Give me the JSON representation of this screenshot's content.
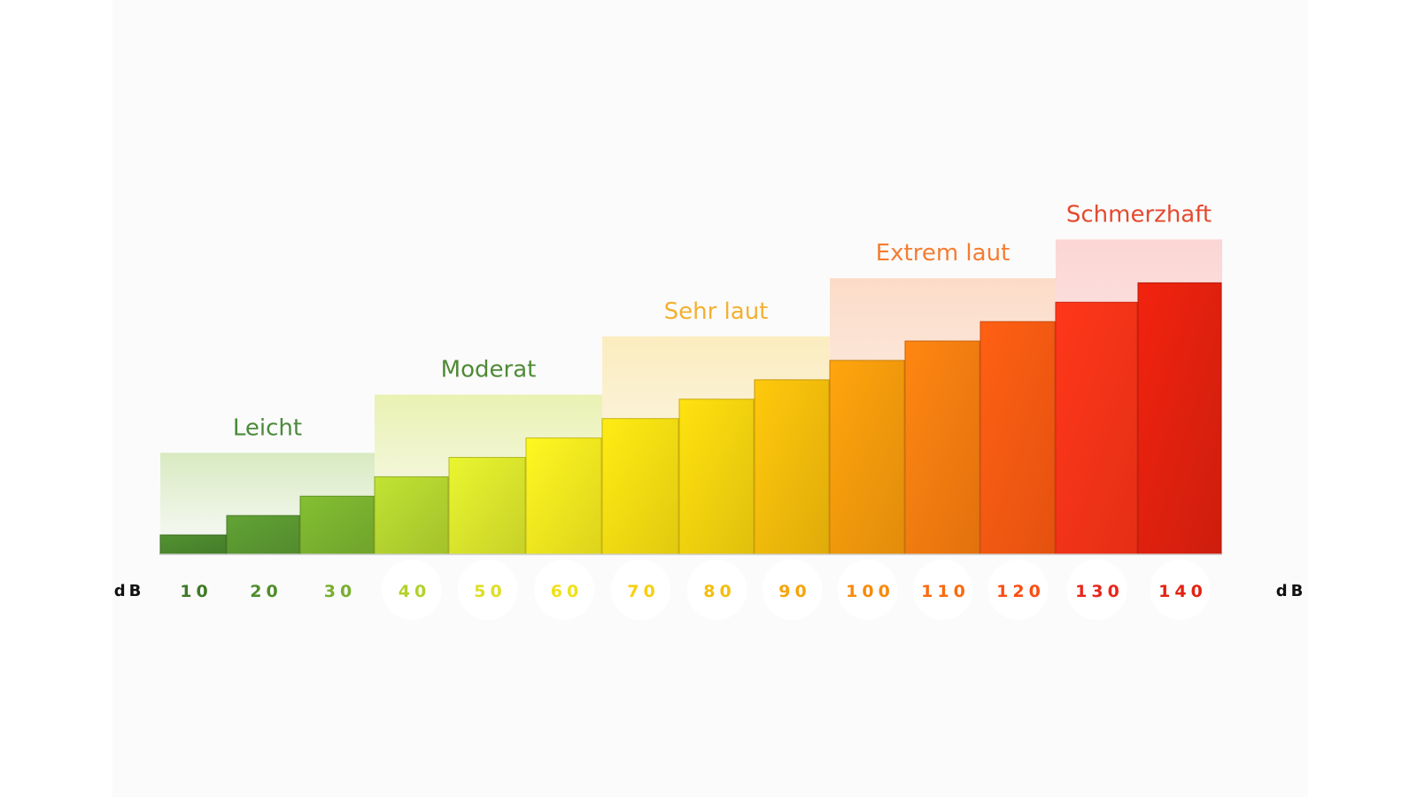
{
  "chart_data": {
    "type": "bar",
    "categories": [
      "10",
      "20",
      "30",
      "40",
      "50",
      "60",
      "70",
      "80",
      "90",
      "100",
      "110",
      "120",
      "130",
      "140"
    ],
    "values": [
      10,
      20,
      30,
      40,
      50,
      60,
      70,
      80,
      90,
      100,
      110,
      120,
      130,
      140
    ],
    "bar_colors": [
      "#4d8a2e",
      "#5c9a32",
      "#7cb530",
      "#b6d630",
      "#dde82c",
      "#f5ea1f",
      "#fadf12",
      "#f9d50e",
      "#f9be0b",
      "#fb9c0c",
      "#fb7e10",
      "#fd5b12",
      "#fd3418",
      "#e4210e"
    ],
    "tick_colors": [
      "#3f7a27",
      "#4f8e2c",
      "#79ae2f",
      "#b2d02d",
      "#dede25",
      "#f1e01c",
      "#f7cf10",
      "#f5bd0c",
      "#f6a40b",
      "#f98a0c",
      "#fa6a10",
      "#fb4d12",
      "#e8261b",
      "#e32212"
    ],
    "zones": [
      {
        "label": "Leicht",
        "from": 0,
        "to": 2,
        "color": "#4a8a3a",
        "tint": "#d2e7b7"
      },
      {
        "label": "Moderat",
        "from": 3,
        "to": 5,
        "color": "#4f8a36",
        "tint": "#e6f0a6"
      },
      {
        "label": "Sehr laut",
        "from": 6,
        "to": 8,
        "color": "#f4b030",
        "tint": "#fbeab5"
      },
      {
        "label": "Extrem laut",
        "from": 9,
        "to": 11,
        "color": "#f57d32",
        "tint": "#fcd6bf"
      },
      {
        "label": "Schmerzhaft",
        "from": 12,
        "to": 13,
        "color": "#e5492e",
        "tint": "#fbcfcc"
      }
    ],
    "unit_left": "dB",
    "unit_right": "dB",
    "ylim": [
      0,
      150
    ]
  }
}
